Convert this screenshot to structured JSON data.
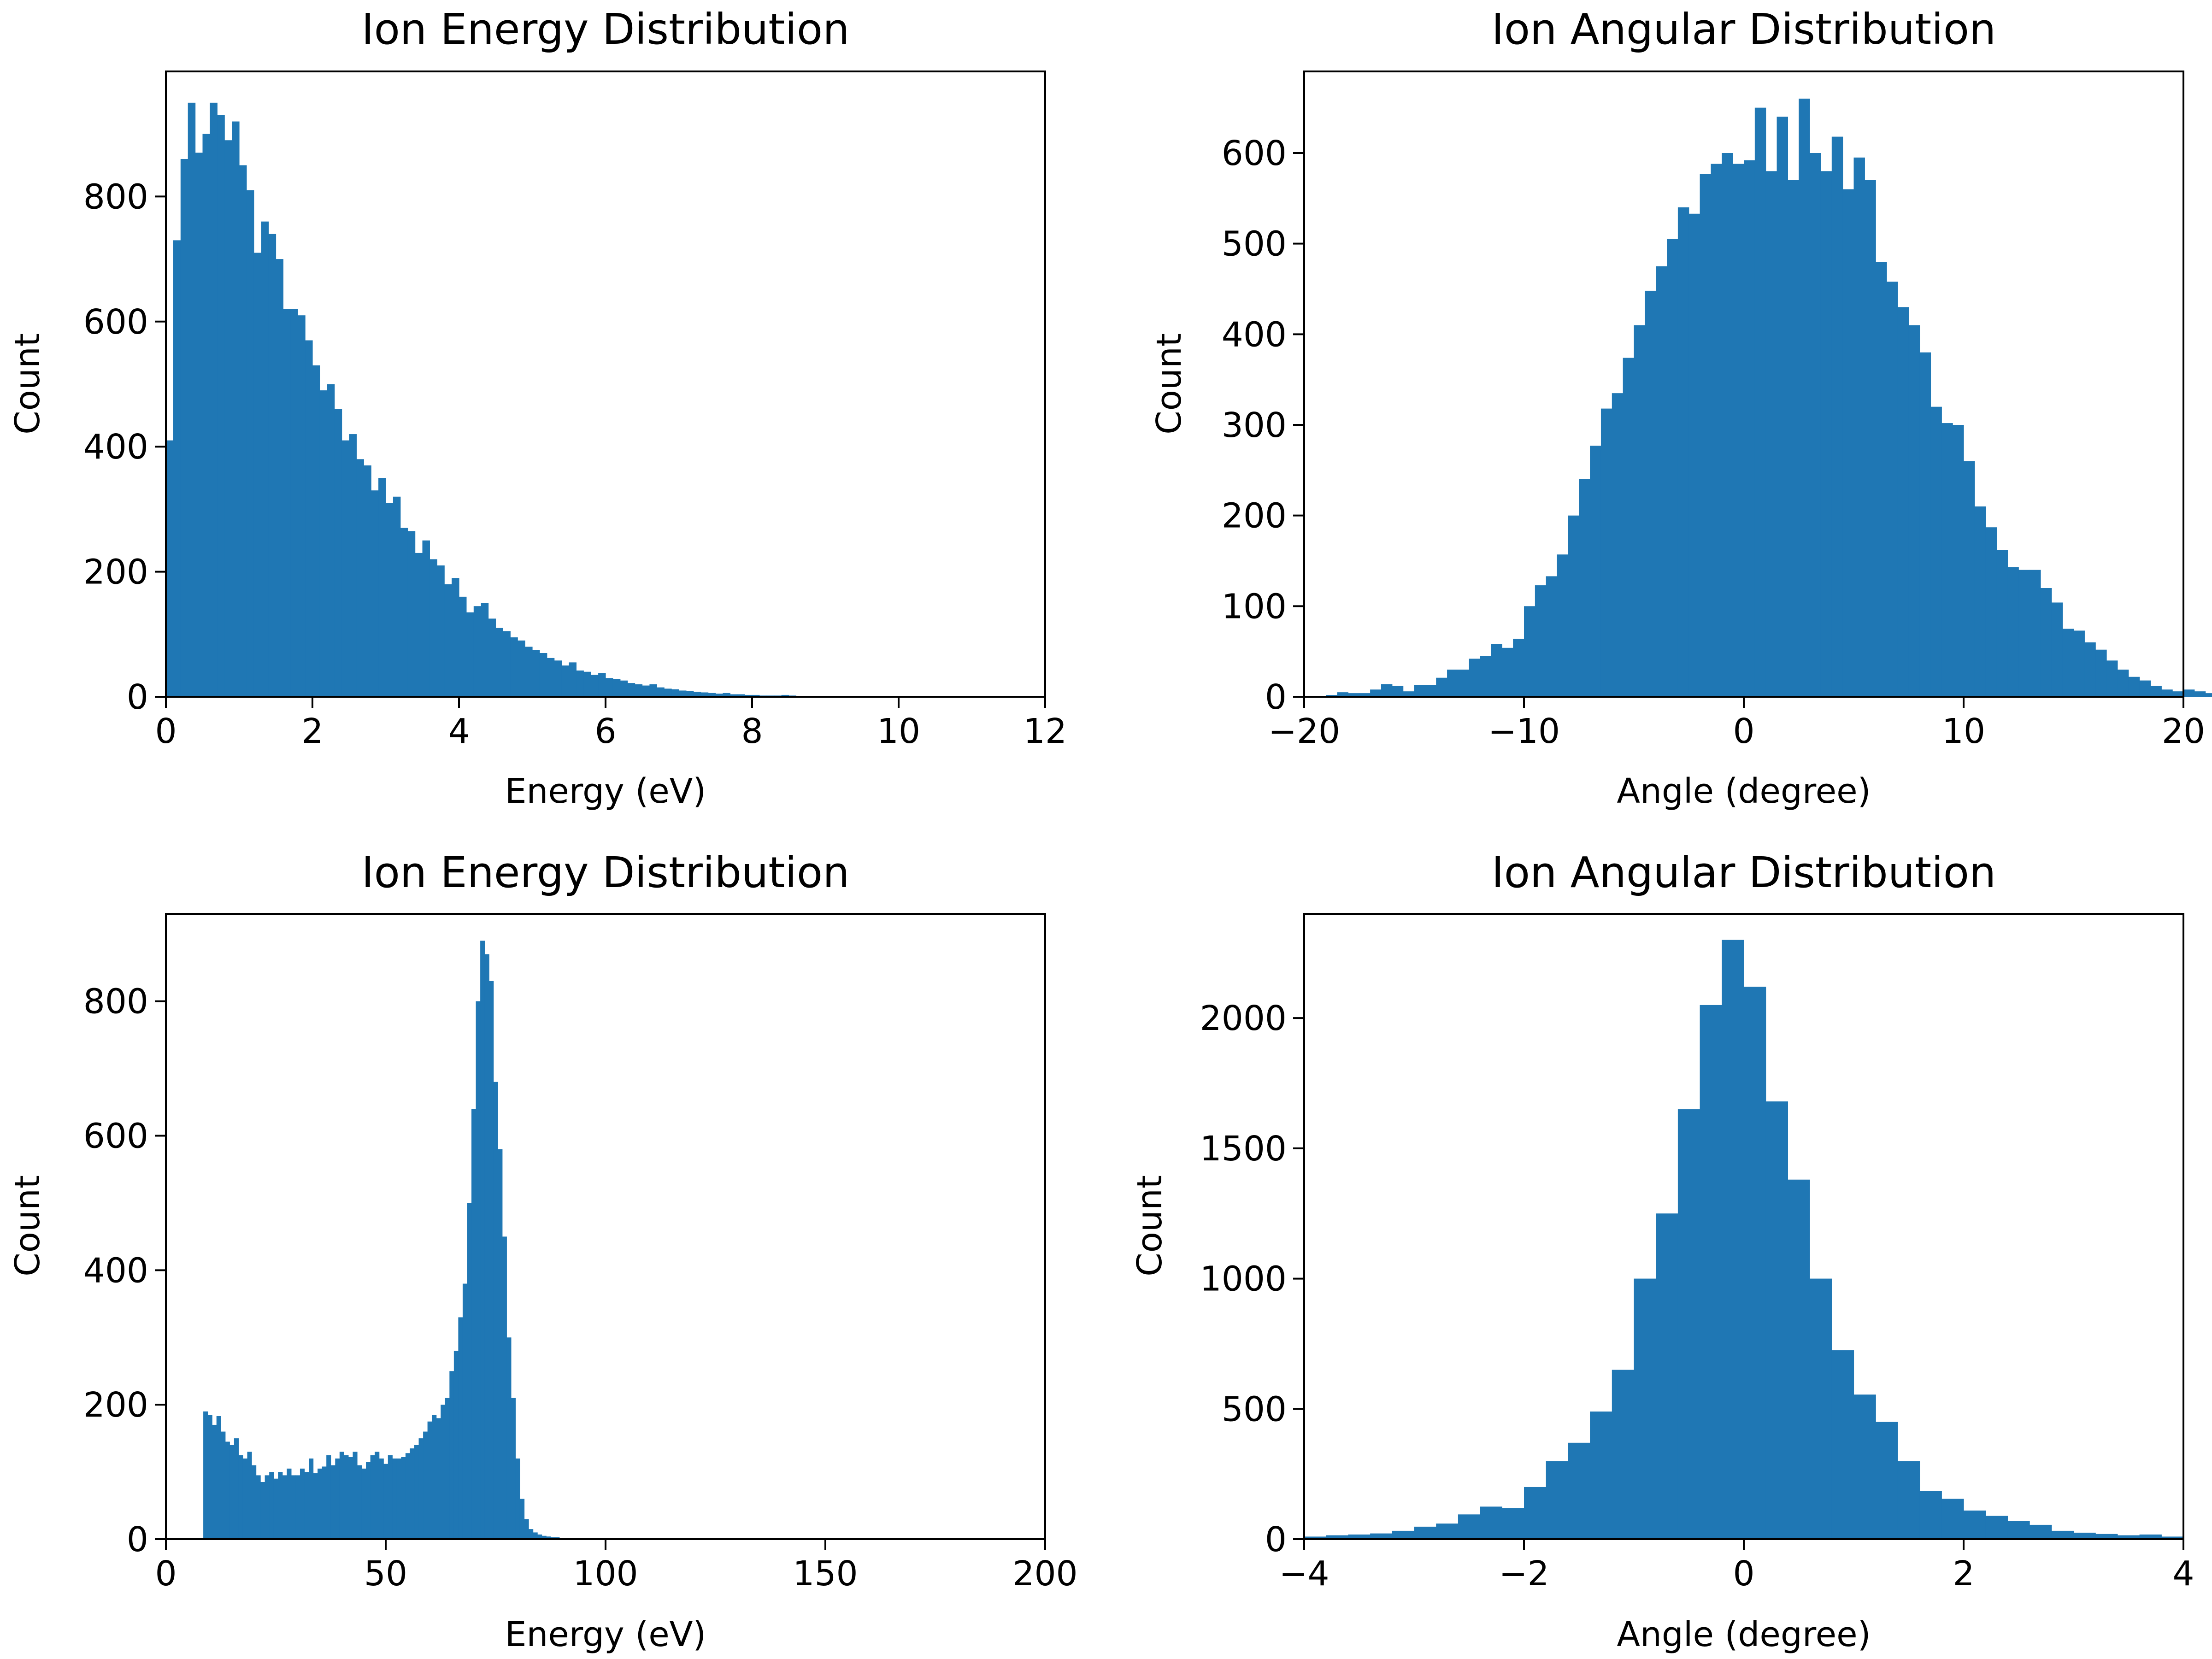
{
  "chart_data": [
    {
      "type": "bar",
      "title": "Ion Energy Distribution",
      "xlabel": "Energy (eV)",
      "ylabel": "Count",
      "xlim": [
        0,
        12
      ],
      "ylim": [
        0,
        1000
      ],
      "xticks": [
        0,
        2,
        4,
        6,
        8,
        10,
        12
      ],
      "yticks": [
        0,
        200,
        400,
        600,
        800
      ],
      "grid": false,
      "legend": "none",
      "color": "#1f77b4",
      "bin_edges_start": 0.0,
      "bin_width": 0.1,
      "values": [
        410,
        730,
        860,
        950,
        870,
        900,
        950,
        930,
        890,
        920,
        850,
        810,
        710,
        760,
        740,
        700,
        620,
        620,
        610,
        570,
        530,
        490,
        500,
        460,
        410,
        420,
        380,
        370,
        330,
        350,
        310,
        320,
        270,
        265,
        230,
        250,
        220,
        210,
        180,
        190,
        160,
        135,
        145,
        150,
        125,
        110,
        105,
        95,
        90,
        80,
        75,
        70,
        62,
        58,
        50,
        55,
        42,
        40,
        35,
        38,
        30,
        28,
        26,
        22,
        20,
        18,
        20,
        15,
        13,
        12,
        10,
        9,
        8,
        7,
        6,
        5,
        6,
        4,
        4,
        3,
        3,
        2,
        2,
        2,
        3,
        2,
        1,
        1
      ]
    },
    {
      "type": "bar",
      "title": "Ion Angular Distribution",
      "xlabel": "Angle (degree)",
      "ylabel": "Count",
      "xlim": [
        -20,
        20
      ],
      "ylim": [
        0,
        690
      ],
      "xticks": [
        -20,
        -10,
        0,
        10,
        20
      ],
      "xtick_labels": [
        "−20",
        "−10",
        "0",
        "10",
        "20"
      ],
      "yticks": [
        0,
        100,
        200,
        300,
        400,
        500,
        600
      ],
      "grid": false,
      "legend": "none",
      "color": "#1f77b4",
      "bin_edges_start": -20.0,
      "bin_width": 0.5,
      "values": [
        1,
        1,
        2,
        5,
        4,
        4,
        8,
        14,
        12,
        6,
        13,
        13,
        21,
        30,
        30,
        42,
        45,
        58,
        54,
        64,
        100,
        123,
        133,
        157,
        200,
        240,
        277,
        318,
        335,
        374,
        410,
        448,
        475,
        505,
        540,
        533,
        577,
        588,
        600,
        588,
        592,
        650,
        580,
        640,
        570,
        660,
        600,
        580,
        618,
        560,
        595,
        570,
        480,
        458,
        430,
        410,
        380,
        320,
        302,
        300,
        260,
        210,
        187,
        162,
        143,
        140,
        140,
        120,
        104,
        75,
        73,
        60,
        52,
        40,
        30,
        22,
        18,
        12,
        8,
        6,
        8,
        6,
        4,
        3,
        3,
        1
      ]
    },
    {
      "type": "bar",
      "title": "Ion Energy Distribution",
      "xlabel": "Energy (eV)",
      "ylabel": "Count",
      "xlim": [
        0,
        200
      ],
      "ylim": [
        0,
        930
      ],
      "xticks": [
        0,
        50,
        100,
        150,
        200
      ],
      "yticks": [
        0,
        200,
        400,
        600,
        800
      ],
      "grid": false,
      "legend": "none",
      "color": "#1f77b4",
      "bin_edges_start": 8.5,
      "bin_width": 1.0,
      "values": [
        190,
        185,
        170,
        183,
        160,
        145,
        140,
        150,
        125,
        120,
        130,
        110,
        95,
        85,
        95,
        100,
        90,
        100,
        95,
        105,
        95,
        95,
        105,
        100,
        120,
        98,
        105,
        108,
        125,
        110,
        120,
        130,
        125,
        122,
        130,
        110,
        105,
        115,
        125,
        130,
        120,
        112,
        125,
        120,
        120,
        122,
        128,
        135,
        140,
        150,
        160,
        175,
        185,
        180,
        200,
        210,
        250,
        280,
        330,
        380,
        500,
        640,
        800,
        890,
        870,
        830,
        680,
        580,
        450,
        300,
        210,
        120,
        60,
        30,
        15,
        10,
        7,
        5,
        4,
        3,
        3,
        2
      ]
    },
    {
      "type": "bar",
      "title": "Ion Angular Distribution",
      "xlabel": "Angle (degree)",
      "ylabel": "Count",
      "xlim": [
        -4,
        4
      ],
      "ylim": [
        0,
        2400
      ],
      "xticks": [
        -4,
        -2,
        0,
        2,
        4
      ],
      "xtick_labels": [
        "−4",
        "−2",
        "0",
        "2",
        "4"
      ],
      "yticks": [
        0,
        500,
        1000,
        1500,
        2000
      ],
      "grid": false,
      "legend": "none",
      "color": "#1f77b4",
      "bin_edges_start": -4.0,
      "bin_width": 0.2,
      "values": [
        10,
        15,
        18,
        22,
        32,
        48,
        60,
        95,
        125,
        120,
        200,
        300,
        370,
        490,
        650,
        1000,
        1250,
        1650,
        2050,
        2300,
        2120,
        1680,
        1380,
        1000,
        725,
        555,
        450,
        300,
        185,
        155,
        110,
        90,
        70,
        55,
        32,
        25,
        20,
        15,
        18,
        10
      ]
    }
  ]
}
